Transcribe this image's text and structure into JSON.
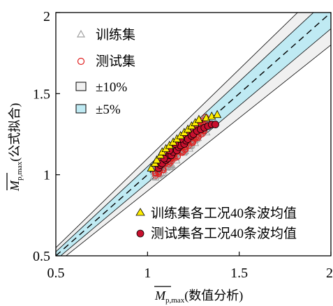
{
  "chart_data": {
    "type": "scatter",
    "xlabel": {
      "symbol": "M",
      "subscript": "p,max",
      "text": "(数值分析)"
    },
    "ylabel": {
      "symbol": "M",
      "subscript": "p,max",
      "text": "(公式拟合)"
    },
    "xlim": [
      0.5,
      2
    ],
    "ylim": [
      0.5,
      2
    ],
    "xticks": [
      0.5,
      1,
      1.5,
      2
    ],
    "xtick_labels": [
      "0.5",
      "1",
      "1.5",
      "2"
    ],
    "yticks": [
      0.5,
      1,
      1.5,
      2
    ],
    "ytick_labels": [
      "0.5",
      "1",
      "1.5",
      "2"
    ],
    "grid": false,
    "legend_top": {
      "placement": "top-left",
      "entries": [
        {
          "key": "train",
          "label": "训练集"
        },
        {
          "key": "test",
          "label": "测试集"
        },
        {
          "key": "band10",
          "label": "±10%"
        },
        {
          "key": "band5",
          "label": "±5%"
        }
      ]
    },
    "legend_bottom": {
      "placement": "bottom-right",
      "entries": [
        {
          "key": "train_avg",
          "label": "训练集各工况40条波均值"
        },
        {
          "key": "test_avg",
          "label": "测试集各工况40条波均值"
        }
      ]
    },
    "reference": {
      "line": "y = x",
      "bands": [
        0.1,
        0.05
      ]
    },
    "colors": {
      "train": "#a0a0a0",
      "test": "#e02020",
      "band10_fill": "#f0f0f0",
      "band5_fill": "#bfeaf3",
      "train_avg_fill": "#ffee00",
      "test_avg_fill": "#c8102e"
    },
    "series": [
      {
        "key": "train_avg",
        "marker": "triangle-filled",
        "points": [
          [
            1.02,
            1.04
          ],
          [
            1.04,
            1.07
          ],
          [
            1.05,
            1.09
          ],
          [
            1.07,
            1.12
          ],
          [
            1.08,
            1.14
          ],
          [
            1.1,
            1.16
          ],
          [
            1.12,
            1.18
          ],
          [
            1.14,
            1.2
          ],
          [
            1.16,
            1.22
          ],
          [
            1.18,
            1.24
          ],
          [
            1.2,
            1.26
          ],
          [
            1.22,
            1.28
          ],
          [
            1.24,
            1.3
          ],
          [
            1.26,
            1.32
          ],
          [
            1.28,
            1.34
          ],
          [
            1.32,
            1.35
          ],
          [
            1.35,
            1.36
          ],
          [
            1.38,
            1.37
          ]
        ]
      },
      {
        "key": "test_avg",
        "marker": "circle-filled",
        "points": [
          [
            1.06,
            1.04
          ],
          [
            1.07,
            1.06
          ],
          [
            1.08,
            1.07
          ],
          [
            1.1,
            1.09
          ],
          [
            1.11,
            1.1
          ],
          [
            1.12,
            1.12
          ],
          [
            1.13,
            1.12
          ],
          [
            1.14,
            1.14
          ],
          [
            1.16,
            1.15
          ],
          [
            1.17,
            1.17
          ],
          [
            1.18,
            1.18
          ],
          [
            1.2,
            1.19
          ],
          [
            1.21,
            1.21
          ],
          [
            1.22,
            1.22
          ],
          [
            1.24,
            1.24
          ],
          [
            1.25,
            1.25
          ],
          [
            1.27,
            1.27
          ],
          [
            1.29,
            1.28
          ],
          [
            1.31,
            1.29
          ],
          [
            1.33,
            1.3
          ],
          [
            1.35,
            1.31
          ],
          [
            1.37,
            1.31
          ],
          [
            1.09,
            1.1
          ],
          [
            1.12,
            1.15
          ],
          [
            1.15,
            1.19
          ],
          [
            1.18,
            1.22
          ]
        ]
      }
    ],
    "scatter_clouds": [
      {
        "key": "train",
        "marker": "triangle-open",
        "center": [
          1.18,
          1.16
        ],
        "spread": [
          0.3,
          0.38
        ],
        "count": 170
      },
      {
        "key": "test",
        "marker": "circle-open",
        "center": [
          1.18,
          1.17
        ],
        "spread": [
          0.28,
          0.32
        ],
        "count": 140
      }
    ]
  }
}
